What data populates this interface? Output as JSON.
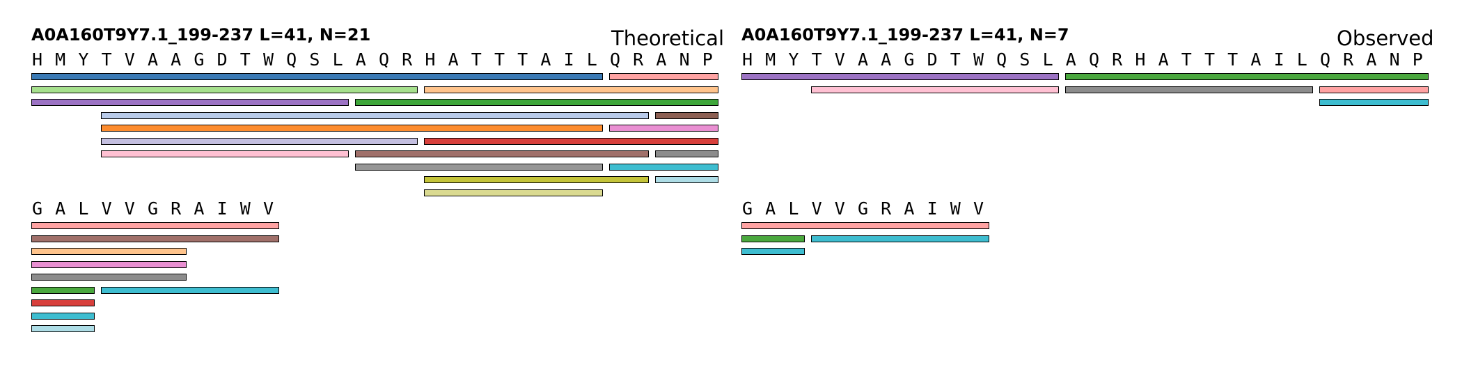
{
  "panels": [
    {
      "title": "A0A160T9Y7.1_199-237  L=41, N=21",
      "label": "Theoretical",
      "blocks": [
        {
          "residues": [
            "H",
            "M",
            "Y",
            "T",
            "V",
            "A",
            "A",
            "G",
            "D",
            "T",
            "W",
            "Q",
            "S",
            "L",
            "A",
            "Q",
            "R",
            "H",
            "A",
            "T",
            "T",
            "T",
            "A",
            "I",
            "L",
            "Q",
            "R",
            "A",
            "N",
            "P"
          ],
          "rows": [
            [
              {
                "start": 0,
                "end": 24,
                "color": "#3a7ab5"
              },
              {
                "start": 25,
                "end": 29,
                "color": "#ffa3a3"
              }
            ],
            [
              {
                "start": 0,
                "end": 16,
                "color": "#a6e08d"
              },
              {
                "start": 17,
                "end": 29,
                "color": "#ffc48c"
              }
            ],
            [
              {
                "start": 0,
                "end": 13,
                "color": "#9c73c4"
              },
              {
                "start": 14,
                "end": 29,
                "color": "#3ea63a"
              }
            ],
            [
              {
                "start": 3,
                "end": 26,
                "color": "#b9cbea"
              },
              {
                "start": 27,
                "end": 29,
                "color": "#8c5f52"
              }
            ],
            [
              {
                "start": 3,
                "end": 24,
                "color": "#fd8c2e"
              },
              {
                "start": 25,
                "end": 29,
                "color": "#e98fd2"
              }
            ],
            [
              {
                "start": 3,
                "end": 16,
                "color": "#c4bfe0"
              },
              {
                "start": 17,
                "end": 29,
                "color": "#d8403c"
              }
            ],
            [
              {
                "start": 3,
                "end": 13,
                "color": "#ffc1d3"
              },
              {
                "start": 14,
                "end": 26,
                "color": "#a0706a"
              },
              {
                "start": 27,
                "end": 29,
                "color": "#8c8c8c"
              }
            ],
            [
              {
                "start": 14,
                "end": 24,
                "color": "#969696"
              },
              {
                "start": 25,
                "end": 29,
                "color": "#3ebdd0"
              }
            ],
            [
              {
                "start": 17,
                "end": 26,
                "color": "#c4c43a"
              },
              {
                "start": 27,
                "end": 29,
                "color": "#aedde6"
              }
            ],
            [
              {
                "start": 17,
                "end": 24,
                "color": "#dada91"
              }
            ]
          ]
        },
        {
          "residues": [
            "G",
            "A",
            "L",
            "V",
            "V",
            "G",
            "R",
            "A",
            "I",
            "W",
            "V"
          ],
          "rows": [
            [
              {
                "start": 0,
                "end": 10,
                "color": "#ffa3a3"
              }
            ],
            [
              {
                "start": 0,
                "end": 10,
                "color": "#a0706a"
              }
            ],
            [
              {
                "start": 0,
                "end": 6,
                "color": "#ffc48c"
              }
            ],
            [
              {
                "start": 0,
                "end": 6,
                "color": "#e98fd2"
              }
            ],
            [
              {
                "start": 0,
                "end": 6,
                "color": "#8c8c8c"
              }
            ],
            [
              {
                "start": 0,
                "end": 2,
                "color": "#4aa83e"
              },
              {
                "start": 3,
                "end": 10,
                "color": "#3ebdd0"
              }
            ],
            [
              {
                "start": 0,
                "end": 2,
                "color": "#d8403c"
              }
            ],
            [
              {
                "start": 0,
                "end": 2,
                "color": "#3ebdd0"
              }
            ],
            [
              {
                "start": 0,
                "end": 2,
                "color": "#aedde6"
              }
            ]
          ]
        }
      ]
    },
    {
      "title": "A0A160T9Y7.1_199-237  L=41, N=7",
      "label": "Observed",
      "blocks": [
        {
          "residues": [
            "H",
            "M",
            "Y",
            "T",
            "V",
            "A",
            "A",
            "G",
            "D",
            "T",
            "W",
            "Q",
            "S",
            "L",
            "A",
            "Q",
            "R",
            "H",
            "A",
            "T",
            "T",
            "T",
            "A",
            "I",
            "L",
            "Q",
            "R",
            "A",
            "N",
            "P"
          ],
          "rows": [
            [
              {
                "start": 0,
                "end": 13,
                "color": "#9c73c4"
              },
              {
                "start": 14,
                "end": 29,
                "color": "#4aa83e"
              }
            ],
            [
              {
                "start": 3,
                "end": 13,
                "color": "#ffc1d3"
              },
              {
                "start": 14,
                "end": 24,
                "color": "#8c8c8c"
              },
              {
                "start": 25,
                "end": 29,
                "color": "#ffa3a3"
              }
            ],
            [
              {
                "start": 25,
                "end": 29,
                "color": "#3ebdd0"
              }
            ]
          ]
        },
        {
          "residues": [
            "G",
            "A",
            "L",
            "V",
            "V",
            "G",
            "R",
            "A",
            "I",
            "W",
            "V"
          ],
          "rows": [
            [
              {
                "start": 0,
                "end": 10,
                "color": "#ffa3a3"
              }
            ],
            [
              {
                "start": 0,
                "end": 2,
                "color": "#4aa83e"
              },
              {
                "start": 3,
                "end": 10,
                "color": "#3ebdd0"
              }
            ],
            [
              {
                "start": 0,
                "end": 2,
                "color": "#3ebdd0"
              }
            ]
          ]
        }
      ]
    }
  ]
}
